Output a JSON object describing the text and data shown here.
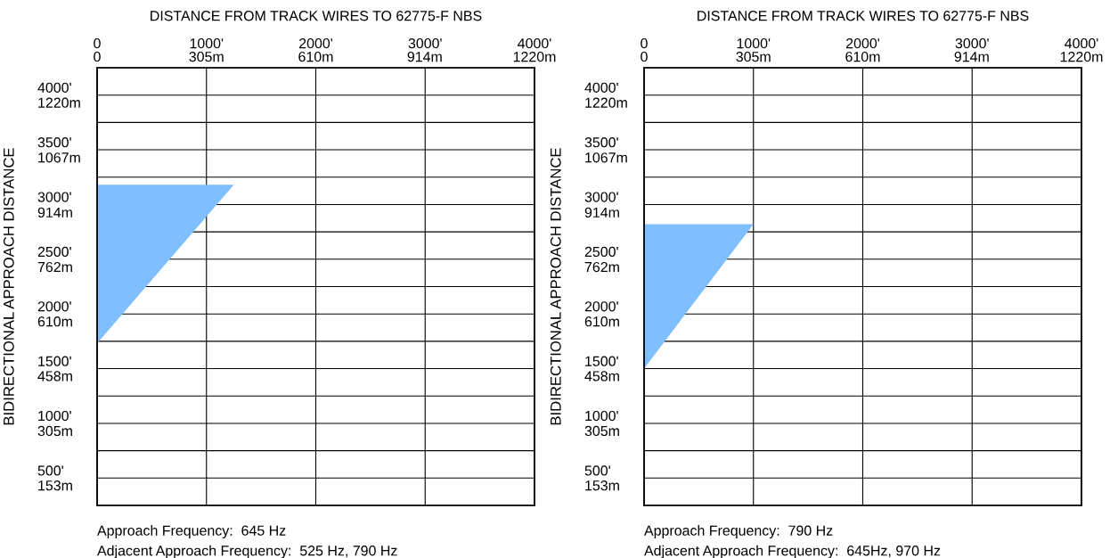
{
  "chart_data": [
    {
      "type": "area",
      "title": "DISTANCE FROM TRACK WIRES TO 62775-F NBS",
      "ylabel": "BIDIRECTIONAL APPROACH DISTANCE",
      "orientation": "horizontal",
      "series": [
        {
          "color": "#80bfff",
          "x": [
            1730,
            3180
          ],
          "values": [
            0,
            1250
          ]
        }
      ],
      "xlim": [
        0,
        4000
      ],
      "ylim": [
        250,
        4250
      ],
      "x2lim": [
        0,
        1220
      ],
      "y2lim": [
        76,
        1296
      ],
      "xticks": [
        0,
        {
          "value": 1000,
          "label": "1000'"
        },
        {
          "value": 2000,
          "label": "2000'"
        },
        {
          "value": 3000,
          "label": "3000'"
        },
        {
          "value": 4000,
          "label": "4000'"
        }
      ],
      "x2ticks": [
        0,
        {
          "value": 305,
          "label": "305m"
        },
        {
          "value": 610,
          "label": "610m"
        },
        {
          "value": 914,
          "label": "914m"
        },
        {
          "value": 1220,
          "label": "1220m"
        }
      ],
      "yticks": [
        {
          "value": 500,
          "label": "500'"
        },
        {
          "value": 750,
          "label": null
        },
        {
          "value": 1000,
          "label": "1000'"
        },
        {
          "value": 1250,
          "label": null
        },
        {
          "value": 1500,
          "label": "1500'"
        },
        {
          "value": 1750,
          "label": null
        },
        {
          "value": 2000,
          "label": "2000'"
        },
        {
          "value": 2250,
          "label": null
        },
        {
          "value": 2500,
          "label": "2500'"
        },
        {
          "value": 2750,
          "label": null
        },
        {
          "value": 3000,
          "label": "3000'"
        },
        {
          "value": 3250,
          "label": null
        },
        {
          "value": 3500,
          "label": "3500'"
        },
        {
          "value": 3750,
          "label": null
        },
        {
          "value": 4000,
          "label": "4000'"
        }
      ],
      "y2ticks": [
        {
          "value": 153,
          "label": "153m"
        },
        {
          "value": 305,
          "label": "305m"
        },
        {
          "value": 458,
          "label": "458m"
        },
        {
          "value": 610,
          "label": "610m"
        },
        {
          "value": 762,
          "label": "762m"
        },
        {
          "value": 914,
          "label": "914m"
        },
        {
          "value": 1067,
          "label": "1067m"
        },
        {
          "value": 1220,
          "label": "1220m"
        }
      ],
      "grid": true,
      "annotations": [
        "Approach Frequency:  645 Hz",
        "Adjacent Approach Frequency:  525 Hz, 790 Hz"
      ]
    },
    {
      "type": "area",
      "title": "DISTANCE FROM TRACK WIRES TO 62775-F NBS",
      "ylabel": "BIDIRECTIONAL APPROACH DISTANCE",
      "orientation": "horizontal",
      "series": [
        {
          "color": "#80bfff",
          "x": [
            1500,
            2820
          ],
          "values": [
            0,
            1000
          ]
        }
      ],
      "xlim": [
        0,
        4000
      ],
      "ylim": [
        250,
        4250
      ],
      "x2lim": [
        0,
        1220
      ],
      "y2lim": [
        76,
        1296
      ],
      "xticks": [
        0,
        {
          "value": 1000,
          "label": "1000'"
        },
        {
          "value": 2000,
          "label": "2000'"
        },
        {
          "value": 3000,
          "label": "3000'"
        },
        {
          "value": 4000,
          "label": "4000'"
        }
      ],
      "x2ticks": [
        0,
        {
          "value": 305,
          "label": "305m"
        },
        {
          "value": 610,
          "label": "610m"
        },
        {
          "value": 914,
          "label": "914m"
        },
        {
          "value": 1220,
          "label": "1220m"
        }
      ],
      "yticks": [
        {
          "value": 500,
          "label": "500'"
        },
        {
          "value": 750,
          "label": null
        },
        {
          "value": 1000,
          "label": "1000'"
        },
        {
          "value": 1250,
          "label": null
        },
        {
          "value": 1500,
          "label": "1500'"
        },
        {
          "value": 1750,
          "label": null
        },
        {
          "value": 2000,
          "label": "2000'"
        },
        {
          "value": 2250,
          "label": null
        },
        {
          "value": 2500,
          "label": "2500'"
        },
        {
          "value": 2750,
          "label": null
        },
        {
          "value": 3000,
          "label": "3000'"
        },
        {
          "value": 3250,
          "label": null
        },
        {
          "value": 3500,
          "label": "3500'"
        },
        {
          "value": 3750,
          "label": null
        },
        {
          "value": 4000,
          "label": "4000'"
        }
      ],
      "y2ticks": [
        {
          "value": 153,
          "label": "153m"
        },
        {
          "value": 305,
          "label": "305m"
        },
        {
          "value": 458,
          "label": "458m"
        },
        {
          "value": 610,
          "label": "610m"
        },
        {
          "value": 762,
          "label": "762m"
        },
        {
          "value": 914,
          "label": "914m"
        },
        {
          "value": 1067,
          "label": "1067m"
        },
        {
          "value": 1220,
          "label": "1220m"
        }
      ],
      "grid": true,
      "annotations": [
        "Approach Frequency:  790 Hz",
        "Adjacent Approach Frequency:  645Hz, 970 Hz"
      ]
    }
  ]
}
